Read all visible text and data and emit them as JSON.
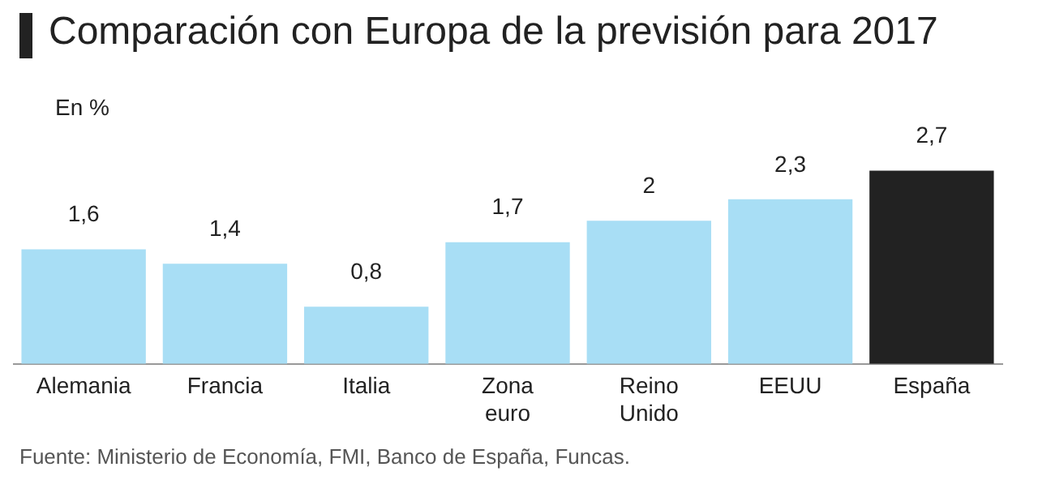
{
  "chart_data": {
    "type": "bar",
    "title": "Comparación con Europa de la previsión para 2017",
    "ylabel": "En %",
    "categories": [
      "Alemania",
      "Francia",
      "Italia",
      "Zona\neuro",
      "Reino\nUnido",
      "EEUU",
      "España"
    ],
    "values": [
      1.6,
      1.4,
      0.8,
      1.7,
      2,
      2.3,
      2.7
    ],
    "colors": [
      "#a8def5",
      "#a8def5",
      "#a8def5",
      "#a8def5",
      "#a8def5",
      "#a8def5",
      "#222222"
    ],
    "value_labels": [
      "1,6",
      "1,4",
      "0,8",
      "1,7",
      "2",
      "2,3",
      "2,7"
    ],
    "annotations": [
      "Fuente: Ministerio de Economía, FMI, Banco de España, Funcas."
    ],
    "legend": false,
    "grid": false
  }
}
